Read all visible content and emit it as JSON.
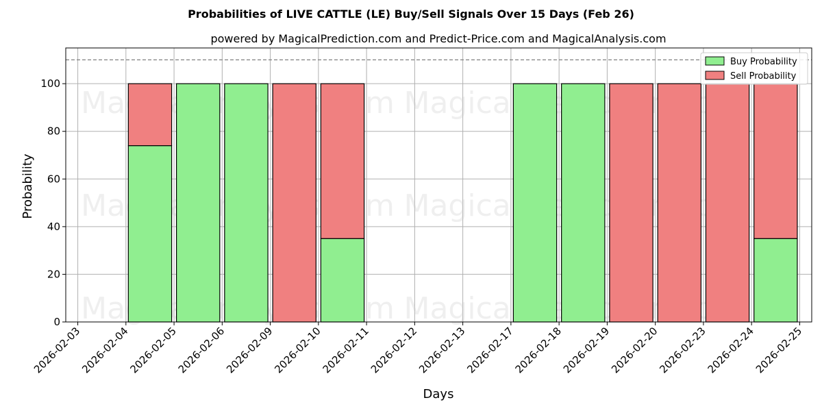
{
  "chart_data": {
    "type": "bar",
    "stacked": true,
    "title": "Probabilities of LIVE CATTLE (LE) Buy/Sell Signals Over 15 Days (Feb 26)",
    "subtitle": "powered by MagicalPrediction.com and Predict-Price.com and MagicalAnalysis.com",
    "xlabel": "Days",
    "ylabel": "Probability",
    "ylim": [
      0,
      115
    ],
    "yticks": [
      0,
      20,
      40,
      60,
      80,
      100
    ],
    "reference_line": 110,
    "grid": true,
    "legend_position": "top-right",
    "categories": [
      "2026-02-03",
      "2026-02-04",
      "2026-02-05",
      "2026-02-06",
      "2026-02-09",
      "2026-02-10",
      "2026-02-11",
      "2026-02-12",
      "2026-02-13",
      "2026-02-17",
      "2026-02-18",
      "2026-02-19",
      "2026-02-20",
      "2026-02-23",
      "2026-02-24",
      "2026-02-25"
    ],
    "series": [
      {
        "name": "Buy Probability",
        "color": "#90ee90",
        "values": [
          null,
          74,
          100,
          100,
          0,
          35,
          null,
          null,
          null,
          100,
          100,
          0,
          0,
          0,
          35,
          null
        ]
      },
      {
        "name": "Sell Probability",
        "color": "#f08080",
        "values": [
          null,
          26,
          0,
          0,
          100,
          65,
          null,
          null,
          null,
          0,
          0,
          100,
          100,
          100,
          65,
          null
        ]
      }
    ],
    "watermarks": [
      "MagicalAnalysis.com",
      "MagicalPrediction.com",
      "MagicalAnalysis.com",
      "MagicalPrediction.com",
      "MagicalAnalysis.com",
      "MagicalPrediction.com"
    ]
  }
}
